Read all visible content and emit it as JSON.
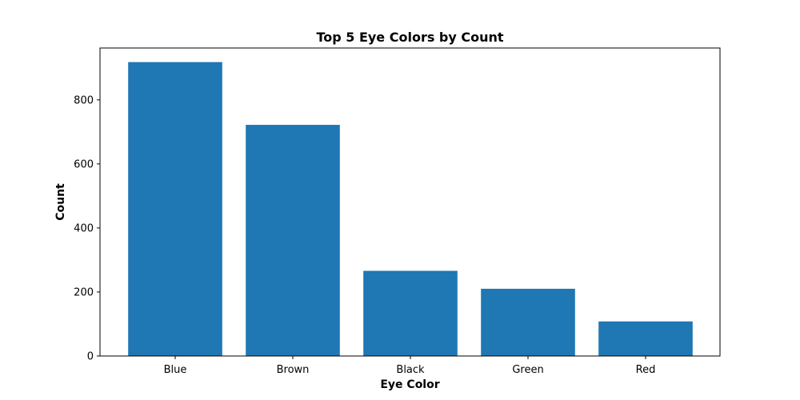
{
  "chart_data": {
    "type": "bar",
    "title": "Top 5 Eye Colors by Count",
    "xlabel": "Eye Color",
    "ylabel": "Count",
    "categories": [
      "Blue",
      "Brown",
      "Black",
      "Green",
      "Red"
    ],
    "values": [
      918,
      722,
      266,
      210,
      108
    ],
    "ylim": [
      0,
      962
    ],
    "yticks": [
      0,
      200,
      400,
      600,
      800
    ],
    "grid": false,
    "bar_color": "#1f77b4"
  }
}
